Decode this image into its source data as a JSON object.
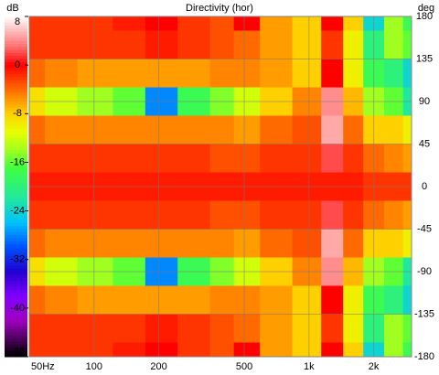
{
  "chart_data": {
    "type": "heatmap",
    "title": "Directivity (hor)",
    "colorbar_unit": "dB",
    "y_unit": "deg",
    "x": [
      50,
      70,
      100,
      150,
      200,
      300,
      400,
      500,
      700,
      1000,
      1300,
      1600,
      2000,
      2500,
      3000
    ],
    "y": [
      180,
      150,
      120,
      90,
      60,
      30,
      0,
      -30,
      -60,
      -90,
      -120,
      -150,
      -180
    ],
    "z": [
      [
        -2,
        -2,
        -2,
        -1,
        0,
        -2,
        -3,
        0,
        -6,
        -8,
        0,
        -8,
        -24,
        -14,
        -18
      ],
      [
        -2,
        -2,
        -2,
        -2,
        -1,
        -2,
        -3,
        -4,
        -6,
        -8,
        -2,
        -10,
        -20,
        -14,
        -16
      ],
      [
        -4,
        -5,
        -6,
        -6,
        -6,
        -6,
        -5,
        -5,
        -6,
        -8,
        0,
        -10,
        -18,
        -20,
        -24
      ],
      [
        -9,
        -12,
        -14,
        -16,
        -28,
        -18,
        -15,
        -12,
        -8,
        -5,
        4,
        -7,
        -14,
        -16,
        -22
      ],
      [
        -4,
        -5,
        -5,
        -5,
        -5,
        -5,
        -5,
        -6,
        -4,
        -3,
        5,
        -4,
        -8,
        -8,
        -10
      ],
      [
        -2,
        -2,
        -2,
        -2,
        -2,
        -2,
        -3,
        -3,
        -2,
        -2,
        2,
        -2,
        -4,
        -5,
        -6
      ],
      [
        -1,
        -1,
        -1,
        -1,
        -1,
        -1,
        -1,
        -1,
        -1,
        -1,
        -1,
        -1,
        -2,
        -2,
        -2
      ],
      [
        -2,
        -2,
        -2,
        -2,
        -2,
        -2,
        -3,
        -3,
        -2,
        -2,
        2,
        -2,
        -4,
        -5,
        -6
      ],
      [
        -4,
        -5,
        -5,
        -5,
        -5,
        -5,
        -5,
        -6,
        -4,
        -3,
        5,
        -4,
        -8,
        -8,
        -10
      ],
      [
        -9,
        -12,
        -14,
        -16,
        -28,
        -18,
        -15,
        -12,
        -8,
        -5,
        4,
        -7,
        -14,
        -16,
        -22
      ],
      [
        -4,
        -5,
        -6,
        -6,
        -6,
        -6,
        -5,
        -5,
        -6,
        -8,
        0,
        -10,
        -18,
        -20,
        -24
      ],
      [
        -2,
        -2,
        -2,
        -2,
        -1,
        -2,
        -3,
        -4,
        -6,
        -8,
        -2,
        -10,
        -20,
        -14,
        -16
      ],
      [
        -2,
        -2,
        -2,
        -1,
        0,
        -2,
        -3,
        0,
        -6,
        -8,
        0,
        -8,
        -24,
        -14,
        -18
      ]
    ],
    "xlim": [
      50,
      3000
    ],
    "log_x": true,
    "xticks": [
      {
        "value": 50,
        "label": "50Hz"
      },
      100,
      200,
      500,
      {
        "value": 1000,
        "label": "1k"
      },
      {
        "value": 2000,
        "label": "2k"
      }
    ],
    "ylim": [
      -180,
      180
    ],
    "yticks": [
      180,
      135,
      90,
      45,
      0,
      -45,
      -90,
      -135,
      -180
    ],
    "clim": [
      -48,
      8
    ],
    "cticks": [
      8,
      0,
      -8,
      -16,
      -24,
      -32,
      -40,
      -48
    ],
    "colorscale": [
      [
        8,
        "#ffffff"
      ],
      [
        3,
        "#ff7070"
      ],
      [
        0,
        "#ff0000"
      ],
      [
        -4,
        "#ff6a00"
      ],
      [
        -8,
        "#ffd000"
      ],
      [
        -11,
        "#e8ff00"
      ],
      [
        -14,
        "#a0ff20"
      ],
      [
        -17,
        "#40ff40"
      ],
      [
        -22,
        "#20e8a0"
      ],
      [
        -26,
        "#00c0ff"
      ],
      [
        -30,
        "#0050ff"
      ],
      [
        -34,
        "#2000d0"
      ],
      [
        -38,
        "#8000ff"
      ],
      [
        -42,
        "#a000c0"
      ],
      [
        -48,
        "#000000"
      ]
    ],
    "grid": true
  }
}
